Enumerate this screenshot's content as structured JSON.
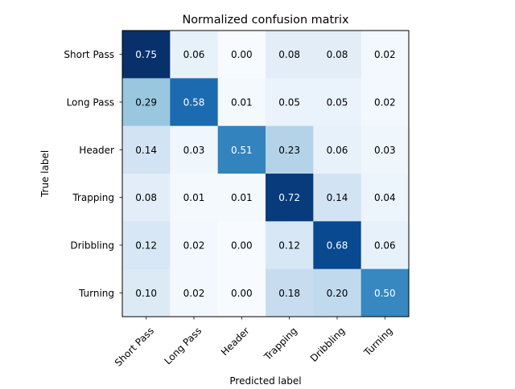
{
  "chart_data": {
    "type": "heatmap",
    "title": "Normalized confusion matrix",
    "xlabel": "Predicted label",
    "ylabel": "True label",
    "x_categories": [
      "Short Pass",
      "Long Pass",
      "Header",
      "Trapping",
      "Dribbling",
      "Turning"
    ],
    "y_categories": [
      "Short Pass",
      "Long Pass",
      "Header",
      "Trapping",
      "Dribbling",
      "Turning"
    ],
    "values": [
      [
        0.75,
        0.06,
        0.0,
        0.08,
        0.08,
        0.02
      ],
      [
        0.29,
        0.58,
        0.01,
        0.05,
        0.05,
        0.02
      ],
      [
        0.14,
        0.03,
        0.51,
        0.23,
        0.06,
        0.03
      ],
      [
        0.08,
        0.01,
        0.01,
        0.72,
        0.14,
        0.04
      ],
      [
        0.12,
        0.02,
        0.0,
        0.12,
        0.68,
        0.06
      ],
      [
        0.1,
        0.02,
        0.0,
        0.18,
        0.2,
        0.5
      ]
    ],
    "colormap": "Blues",
    "value_range": [
      0.0,
      0.75
    ]
  }
}
